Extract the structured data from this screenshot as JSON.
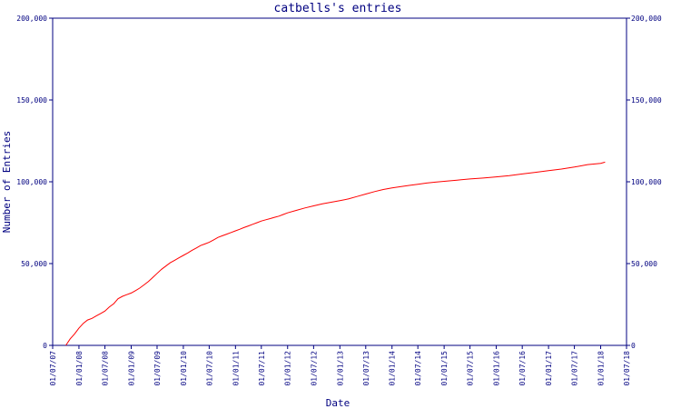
{
  "chart_data": {
    "type": "line",
    "title": "catbells's entries",
    "xlabel": "Date",
    "ylabel": "Number of Entries",
    "ylim": [
      0,
      200000
    ],
    "y_ticks": [
      0,
      50000,
      100000,
      150000,
      200000
    ],
    "y_tick_labels": [
      "0",
      "50,000",
      "100,000",
      "150,000",
      "200,000"
    ],
    "x_range": [
      "2007-07-01",
      "2018-07-01"
    ],
    "x_ticks": [
      {
        "date": "2007-07-01",
        "label": "01/07/07"
      },
      {
        "date": "2008-01-01",
        "label": "01/01/08"
      },
      {
        "date": "2008-07-01",
        "label": "01/07/08"
      },
      {
        "date": "2009-01-01",
        "label": "01/01/09"
      },
      {
        "date": "2009-07-01",
        "label": "01/07/09"
      },
      {
        "date": "2010-01-01",
        "label": "01/01/10"
      },
      {
        "date": "2010-07-01",
        "label": "01/07/10"
      },
      {
        "date": "2011-01-01",
        "label": "01/01/11"
      },
      {
        "date": "2011-07-01",
        "label": "01/07/11"
      },
      {
        "date": "2012-01-01",
        "label": "01/01/12"
      },
      {
        "date": "2012-07-01",
        "label": "01/07/12"
      },
      {
        "date": "2013-01-01",
        "label": "01/01/13"
      },
      {
        "date": "2013-07-01",
        "label": "01/07/13"
      },
      {
        "date": "2014-01-01",
        "label": "01/01/14"
      },
      {
        "date": "2014-07-01",
        "label": "01/07/14"
      },
      {
        "date": "2015-01-01",
        "label": "01/01/15"
      },
      {
        "date": "2015-07-01",
        "label": "01/07/15"
      },
      {
        "date": "2016-01-01",
        "label": "01/01/16"
      },
      {
        "date": "2016-07-01",
        "label": "01/07/16"
      },
      {
        "date": "2017-01-01",
        "label": "01/01/17"
      },
      {
        "date": "2017-07-01",
        "label": "01/07/17"
      },
      {
        "date": "2018-01-01",
        "label": "01/01/18"
      },
      {
        "date": "2018-07-01",
        "label": "01/07/18"
      }
    ],
    "grid": false,
    "right_axis": true,
    "series": [
      {
        "color": "#ff0000",
        "points": [
          [
            "2007-10-01",
            0
          ],
          [
            "2007-11-01",
            4000
          ],
          [
            "2007-12-01",
            7000
          ],
          [
            "2008-01-01",
            10500
          ],
          [
            "2008-02-01",
            13500
          ],
          [
            "2008-03-01",
            15500
          ],
          [
            "2008-04-01",
            16500
          ],
          [
            "2008-05-01",
            18000
          ],
          [
            "2008-06-01",
            19500
          ],
          [
            "2008-07-01",
            21000
          ],
          [
            "2008-08-01",
            23500
          ],
          [
            "2008-09-01",
            25500
          ],
          [
            "2008-10-01",
            28500
          ],
          [
            "2008-11-01",
            30000
          ],
          [
            "2008-12-01",
            31000
          ],
          [
            "2009-01-01",
            32000
          ],
          [
            "2009-02-01",
            33500
          ],
          [
            "2009-03-01",
            35000
          ],
          [
            "2009-04-01",
            37000
          ],
          [
            "2009-05-01",
            39000
          ],
          [
            "2009-06-01",
            41500
          ],
          [
            "2009-07-01",
            44000
          ],
          [
            "2009-08-01",
            46500
          ],
          [
            "2009-09-01",
            48500
          ],
          [
            "2009-10-01",
            50500
          ],
          [
            "2009-11-01",
            52000
          ],
          [
            "2009-12-01",
            53500
          ],
          [
            "2010-01-01",
            55000
          ],
          [
            "2010-02-01",
            56500
          ],
          [
            "2010-03-01",
            58000
          ],
          [
            "2010-04-01",
            59500
          ],
          [
            "2010-05-01",
            61000
          ],
          [
            "2010-06-01",
            62000
          ],
          [
            "2010-07-01",
            63000
          ],
          [
            "2010-08-01",
            64500
          ],
          [
            "2010-09-01",
            66000
          ],
          [
            "2010-10-01",
            67000
          ],
          [
            "2010-11-01",
            68000
          ],
          [
            "2010-12-01",
            69000
          ],
          [
            "2011-01-01",
            70000
          ],
          [
            "2011-02-01",
            71000
          ],
          [
            "2011-03-01",
            72000
          ],
          [
            "2011-04-01",
            73000
          ],
          [
            "2011-05-01",
            74000
          ],
          [
            "2011-06-01",
            75000
          ],
          [
            "2011-07-01",
            76000
          ],
          [
            "2011-08-01",
            76800
          ],
          [
            "2011-09-01",
            77500
          ],
          [
            "2011-10-01",
            78300
          ],
          [
            "2011-11-01",
            79000
          ],
          [
            "2011-12-01",
            80000
          ],
          [
            "2012-01-01",
            81000
          ],
          [
            "2012-03-01",
            82500
          ],
          [
            "2012-05-01",
            84000
          ],
          [
            "2012-07-01",
            85300
          ],
          [
            "2012-09-01",
            86500
          ],
          [
            "2012-11-01",
            87500
          ],
          [
            "2013-01-01",
            88500
          ],
          [
            "2013-03-01",
            89500
          ],
          [
            "2013-05-01",
            91000
          ],
          [
            "2013-07-01",
            92500
          ],
          [
            "2013-09-01",
            94000
          ],
          [
            "2013-11-01",
            95300
          ],
          [
            "2014-01-01",
            96300
          ],
          [
            "2014-03-01",
            97000
          ],
          [
            "2014-05-01",
            97800
          ],
          [
            "2014-07-01",
            98500
          ],
          [
            "2014-09-01",
            99200
          ],
          [
            "2014-11-01",
            99800
          ],
          [
            "2015-01-01",
            100300
          ],
          [
            "2015-04-01",
            101000
          ],
          [
            "2015-07-01",
            101700
          ],
          [
            "2015-10-01",
            102300
          ],
          [
            "2016-01-01",
            103000
          ],
          [
            "2016-04-01",
            103800
          ],
          [
            "2016-07-01",
            104800
          ],
          [
            "2016-10-01",
            105800
          ],
          [
            "2017-01-01",
            106800
          ],
          [
            "2017-04-01",
            107800
          ],
          [
            "2017-07-01",
            109000
          ],
          [
            "2017-10-01",
            110500
          ],
          [
            "2018-01-01",
            111300
          ],
          [
            "2018-02-01",
            112000
          ]
        ]
      }
    ]
  }
}
